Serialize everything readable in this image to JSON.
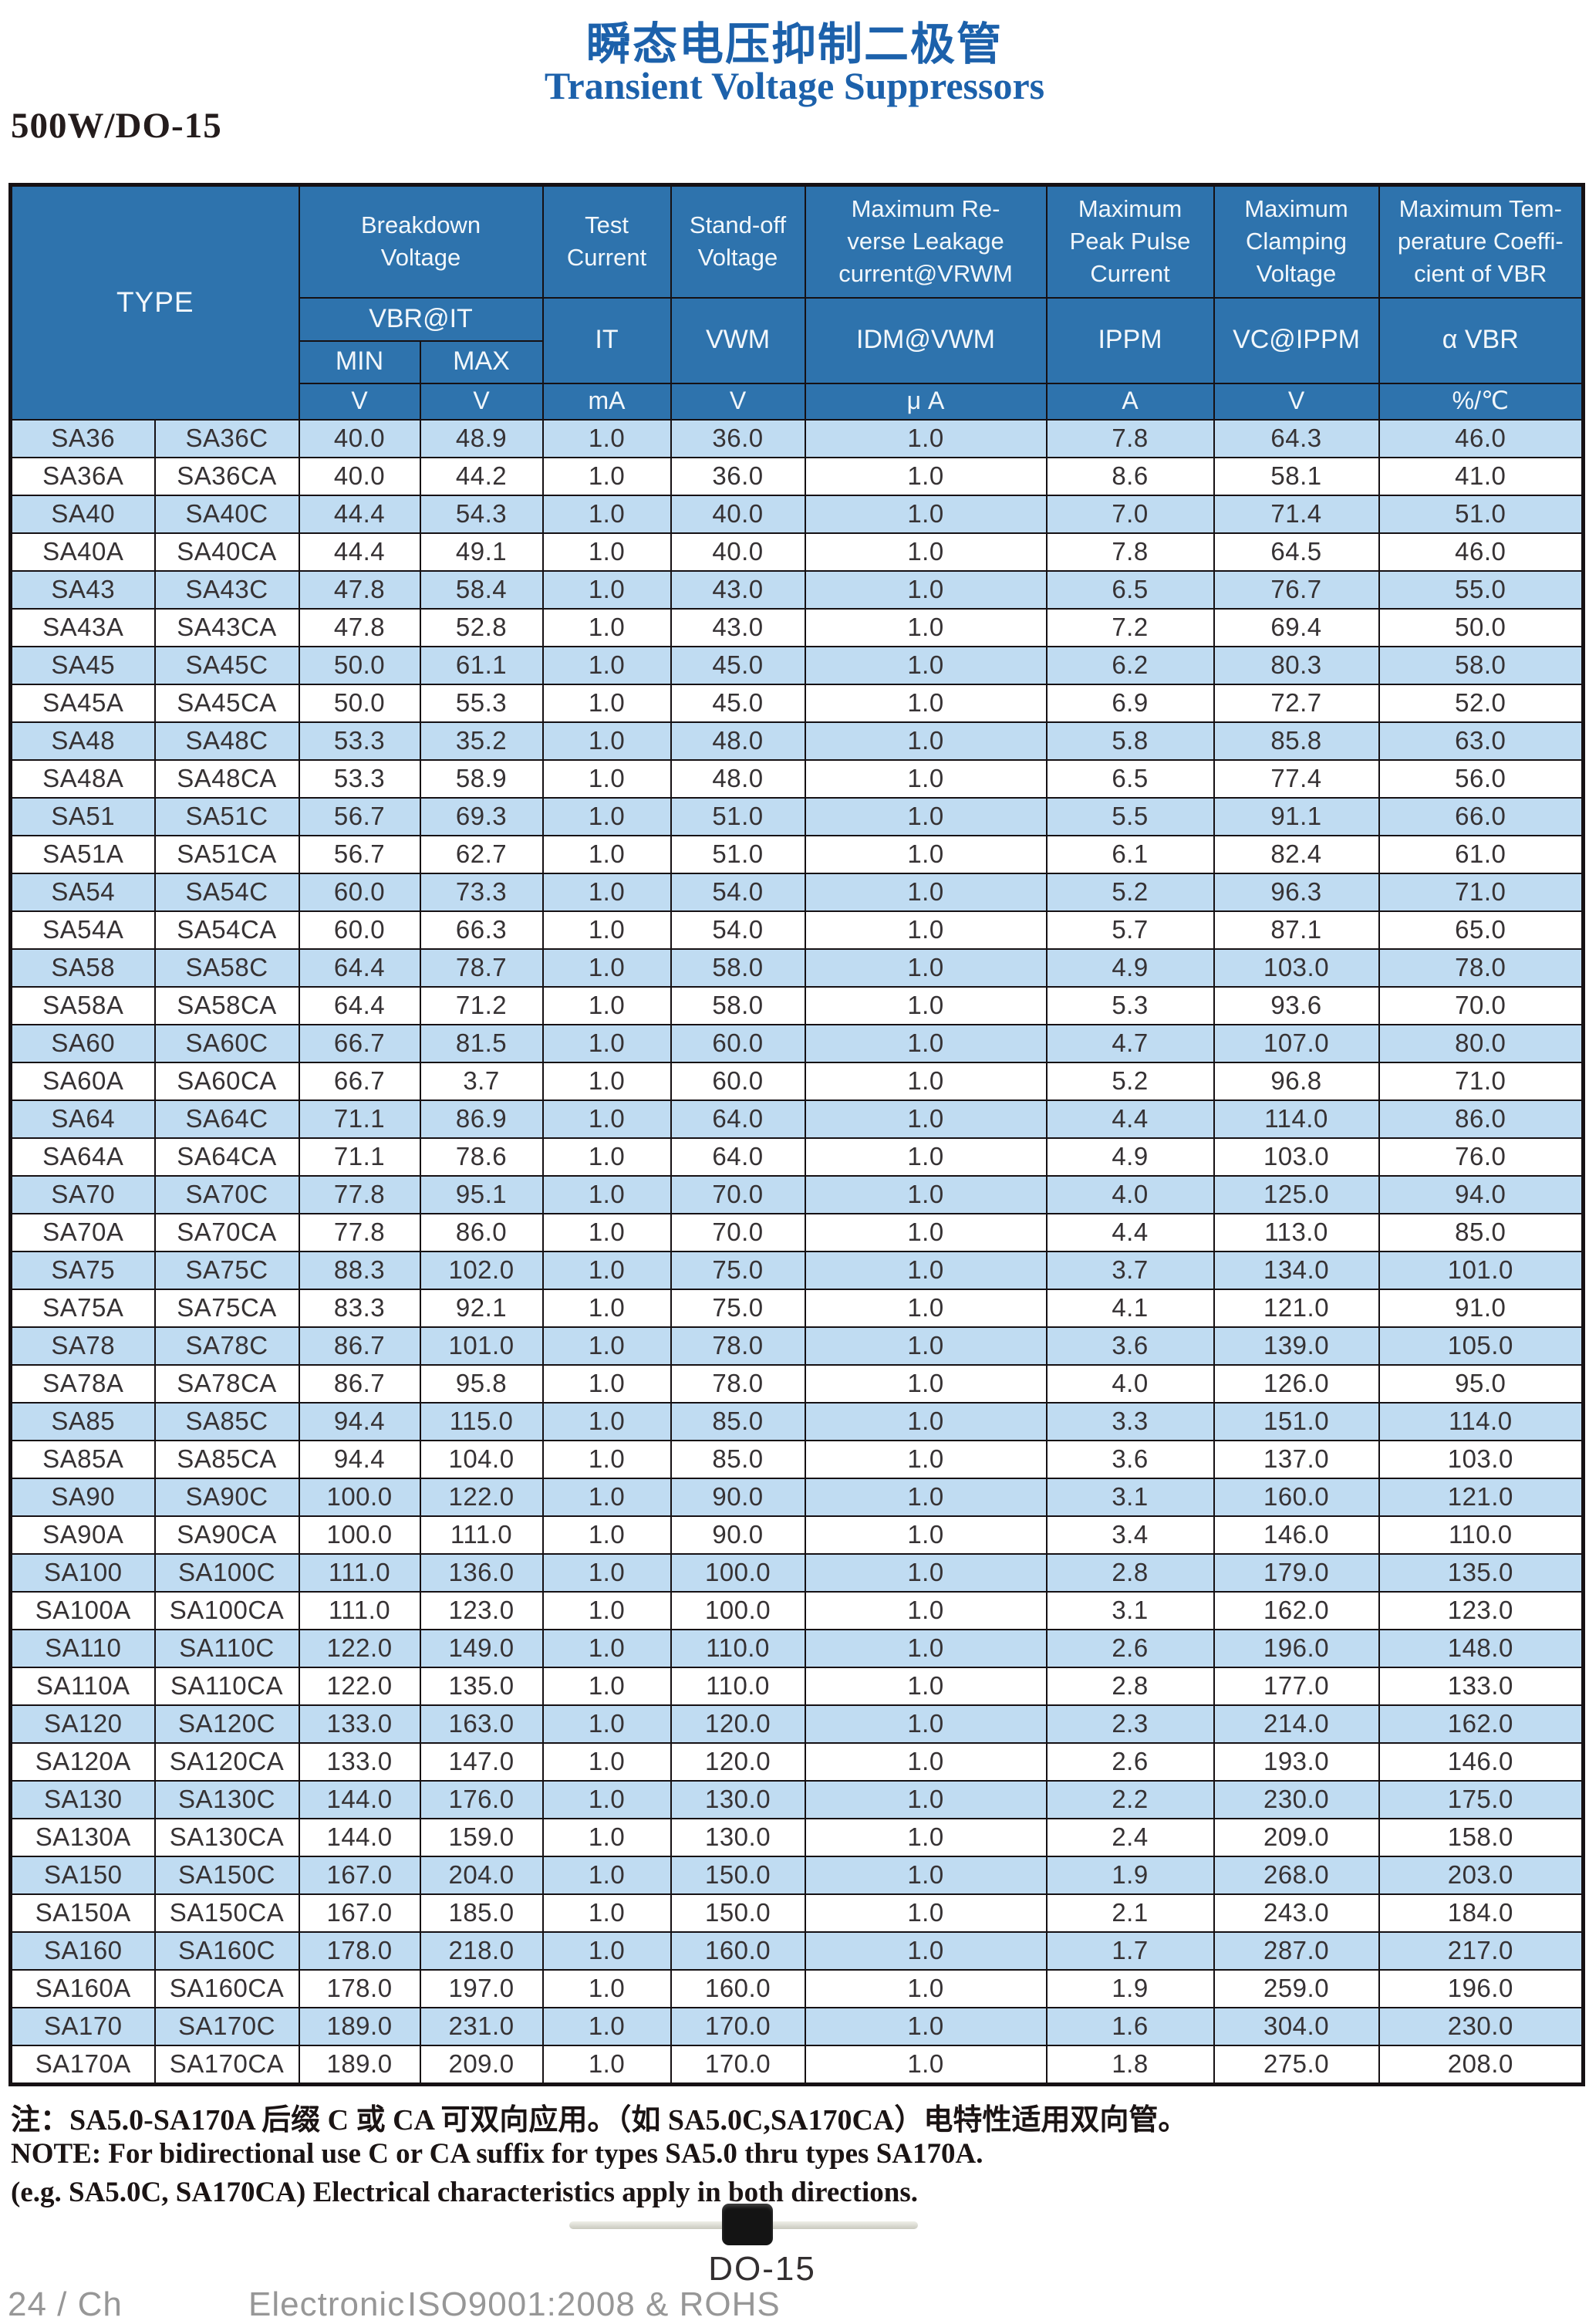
{
  "page": {
    "package_label": "500W/DO-15",
    "title_zh": "瞬态电压抑制二极管",
    "title_en": "Transient Voltage Suppressors",
    "accent_blue": "#1c61ab",
    "header_bg": "#2e73ad",
    "row_alt_bg": "#c0dcf2"
  },
  "table": {
    "header": {
      "type": "TYPE",
      "breakdown_voltage": "Breakdown\nVoltage",
      "test_current": "Test\nCurrent",
      "standoff_voltage": "Stand-off\nVoltage",
      "max_reverse_leakage": "Maximum Re-\nverse Leakage\ncurrent@VRWM",
      "max_peak_pulse_current": "Maximum\nPeak Pulse\nCurrent",
      "max_clamping_voltage": "Maximum\nClamping\nVoltage",
      "max_temp_coefficient": "Maximum Tem-\nperature Coeffi-\ncient of VBR",
      "vbr_at_it": "VBR@IT",
      "min": "MIN",
      "max": "MAX",
      "it": "IT",
      "vwm": "VWM",
      "idm_at_vwm": "IDM@VWM",
      "ippm": "IPPM",
      "vc_at_ippm": "VC@IPPM",
      "alpha_vbr": "α VBR"
    },
    "units": [
      "V",
      "V",
      "mA",
      "V",
      "μ A",
      "A",
      "V",
      "%/℃"
    ],
    "rows": [
      [
        "SA36",
        "SA36C",
        "40.0",
        "48.9",
        "1.0",
        "36.0",
        "1.0",
        "7.8",
        "64.3",
        "46.0"
      ],
      [
        "SA36A",
        "SA36CA",
        "40.0",
        "44.2",
        "1.0",
        "36.0",
        "1.0",
        "8.6",
        "58.1",
        "41.0"
      ],
      [
        "SA40",
        "SA40C",
        "44.4",
        "54.3",
        "1.0",
        "40.0",
        "1.0",
        "7.0",
        "71.4",
        "51.0"
      ],
      [
        "SA40A",
        "SA40CA",
        "44.4",
        "49.1",
        "1.0",
        "40.0",
        "1.0",
        "7.8",
        "64.5",
        "46.0"
      ],
      [
        "SA43",
        "SA43C",
        "47.8",
        "58.4",
        "1.0",
        "43.0",
        "1.0",
        "6.5",
        "76.7",
        "55.0"
      ],
      [
        "SA43A",
        "SA43CA",
        "47.8",
        "52.8",
        "1.0",
        "43.0",
        "1.0",
        "7.2",
        "69.4",
        "50.0"
      ],
      [
        "SA45",
        "SA45C",
        "50.0",
        "61.1",
        "1.0",
        "45.0",
        "1.0",
        "6.2",
        "80.3",
        "58.0"
      ],
      [
        "SA45A",
        "SA45CA",
        "50.0",
        "55.3",
        "1.0",
        "45.0",
        "1.0",
        "6.9",
        "72.7",
        "52.0"
      ],
      [
        "SA48",
        "SA48C",
        "53.3",
        "35.2",
        "1.0",
        "48.0",
        "1.0",
        "5.8",
        "85.8",
        "63.0"
      ],
      [
        "SA48A",
        "SA48CA",
        "53.3",
        "58.9",
        "1.0",
        "48.0",
        "1.0",
        "6.5",
        "77.4",
        "56.0"
      ],
      [
        "SA51",
        "SA51C",
        "56.7",
        "69.3",
        "1.0",
        "51.0",
        "1.0",
        "5.5",
        "91.1",
        "66.0"
      ],
      [
        "SA51A",
        "SA51CA",
        "56.7",
        "62.7",
        "1.0",
        "51.0",
        "1.0",
        "6.1",
        "82.4",
        "61.0"
      ],
      [
        "SA54",
        "SA54C",
        "60.0",
        "73.3",
        "1.0",
        "54.0",
        "1.0",
        "5.2",
        "96.3",
        "71.0"
      ],
      [
        "SA54A",
        "SA54CA",
        "60.0",
        "66.3",
        "1.0",
        "54.0",
        "1.0",
        "5.7",
        "87.1",
        "65.0"
      ],
      [
        "SA58",
        "SA58C",
        "64.4",
        "78.7",
        "1.0",
        "58.0",
        "1.0",
        "4.9",
        "103.0",
        "78.0"
      ],
      [
        "SA58A",
        "SA58CA",
        "64.4",
        "71.2",
        "1.0",
        "58.0",
        "1.0",
        "5.3",
        "93.6",
        "70.0"
      ],
      [
        "SA60",
        "SA60C",
        "66.7",
        "81.5",
        "1.0",
        "60.0",
        "1.0",
        "4.7",
        "107.0",
        "80.0"
      ],
      [
        "SA60A",
        "SA60CA",
        "66.7",
        "3.7",
        "1.0",
        "60.0",
        "1.0",
        "5.2",
        "96.8",
        "71.0"
      ],
      [
        "SA64",
        "SA64C",
        "71.1",
        "86.9",
        "1.0",
        "64.0",
        "1.0",
        "4.4",
        "114.0",
        "86.0"
      ],
      [
        "SA64A",
        "SA64CA",
        "71.1",
        "78.6",
        "1.0",
        "64.0",
        "1.0",
        "4.9",
        "103.0",
        "76.0"
      ],
      [
        "SA70",
        "SA70C",
        "77.8",
        "95.1",
        "1.0",
        "70.0",
        "1.0",
        "4.0",
        "125.0",
        "94.0"
      ],
      [
        "SA70A",
        "SA70CA",
        "77.8",
        "86.0",
        "1.0",
        "70.0",
        "1.0",
        "4.4",
        "113.0",
        "85.0"
      ],
      [
        "SA75",
        "SA75C",
        "88.3",
        "102.0",
        "1.0",
        "75.0",
        "1.0",
        "3.7",
        "134.0",
        "101.0"
      ],
      [
        "SA75A",
        "SA75CA",
        "83.3",
        "92.1",
        "1.0",
        "75.0",
        "1.0",
        "4.1",
        "121.0",
        "91.0"
      ],
      [
        "SA78",
        "SA78C",
        "86.7",
        "101.0",
        "1.0",
        "78.0",
        "1.0",
        "3.6",
        "139.0",
        "105.0"
      ],
      [
        "SA78A",
        "SA78CA",
        "86.7",
        "95.8",
        "1.0",
        "78.0",
        "1.0",
        "4.0",
        "126.0",
        "95.0"
      ],
      [
        "SA85",
        "SA85C",
        "94.4",
        "115.0",
        "1.0",
        "85.0",
        "1.0",
        "3.3",
        "151.0",
        "114.0"
      ],
      [
        "SA85A",
        "SA85CA",
        "94.4",
        "104.0",
        "1.0",
        "85.0",
        "1.0",
        "3.6",
        "137.0",
        "103.0"
      ],
      [
        "SA90",
        "SA90C",
        "100.0",
        "122.0",
        "1.0",
        "90.0",
        "1.0",
        "3.1",
        "160.0",
        "121.0"
      ],
      [
        "SA90A",
        "SA90CA",
        "100.0",
        "111.0",
        "1.0",
        "90.0",
        "1.0",
        "3.4",
        "146.0",
        "110.0"
      ],
      [
        "SA100",
        "SA100C",
        "111.0",
        "136.0",
        "1.0",
        "100.0",
        "1.0",
        "2.8",
        "179.0",
        "135.0"
      ],
      [
        "SA100A",
        "SA100CA",
        "111.0",
        "123.0",
        "1.0",
        "100.0",
        "1.0",
        "3.1",
        "162.0",
        "123.0"
      ],
      [
        "SA110",
        "SA110C",
        "122.0",
        "149.0",
        "1.0",
        "110.0",
        "1.0",
        "2.6",
        "196.0",
        "148.0"
      ],
      [
        "SA110A",
        "SA110CA",
        "122.0",
        "135.0",
        "1.0",
        "110.0",
        "1.0",
        "2.8",
        "177.0",
        "133.0"
      ],
      [
        "SA120",
        "SA120C",
        "133.0",
        "163.0",
        "1.0",
        "120.0",
        "1.0",
        "2.3",
        "214.0",
        "162.0"
      ],
      [
        "SA120A",
        "SA120CA",
        "133.0",
        "147.0",
        "1.0",
        "120.0",
        "1.0",
        "2.6",
        "193.0",
        "146.0"
      ],
      [
        "SA130",
        "SA130C",
        "144.0",
        "176.0",
        "1.0",
        "130.0",
        "1.0",
        "2.2",
        "230.0",
        "175.0"
      ],
      [
        "SA130A",
        "SA130CA",
        "144.0",
        "159.0",
        "1.0",
        "130.0",
        "1.0",
        "2.4",
        "209.0",
        "158.0"
      ],
      [
        "SA150",
        "SA150C",
        "167.0",
        "204.0",
        "1.0",
        "150.0",
        "1.0",
        "1.9",
        "268.0",
        "203.0"
      ],
      [
        "SA150A",
        "SA150CA",
        "167.0",
        "185.0",
        "1.0",
        "150.0",
        "1.0",
        "2.1",
        "243.0",
        "184.0"
      ],
      [
        "SA160",
        "SA160C",
        "178.0",
        "218.0",
        "1.0",
        "160.0",
        "1.0",
        "1.7",
        "287.0",
        "217.0"
      ],
      [
        "SA160A",
        "SA160CA",
        "178.0",
        "197.0",
        "1.0",
        "160.0",
        "1.0",
        "1.9",
        "259.0",
        "196.0"
      ],
      [
        "SA170",
        "SA170C",
        "189.0",
        "231.0",
        "1.0",
        "170.0",
        "1.0",
        "1.6",
        "304.0",
        "230.0"
      ],
      [
        "SA170A",
        "SA170CA",
        "189.0",
        "209.0",
        "1.0",
        "170.0",
        "1.0",
        "1.8",
        "275.0",
        "208.0"
      ]
    ]
  },
  "notes": {
    "zh": "注：SA5.0-SA170A 后缀 C 或 CA 可双向应用。（如 SA5.0C,SA170CA）电特性适用双向管。",
    "en_line1": "NOTE: For bidirectional use C or CA suffix for types SA5.0 thru types SA170A.",
    "en_line2": "(e.g. SA5.0C, SA170CA) Electrical characteristics apply in both directions."
  },
  "figure": {
    "caption": "DO-15"
  },
  "footer": {
    "page_no": "24 / Ch",
    "company": "Electronic",
    "cert": "ISO9001:2008 & ROHS"
  }
}
